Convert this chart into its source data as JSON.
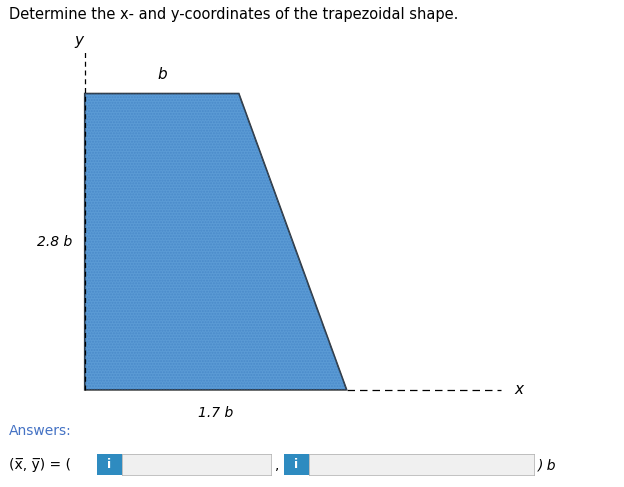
{
  "title": "Determine the x- and y-coordinates of the trapezoidal shape.",
  "title_fontsize": 10.5,
  "title_color": "#000000",
  "background_color": "#ffffff",
  "trap_fill_color": "#5b9bd5",
  "trap_edge_color": "#2d2d2d",
  "trap_edge_width": 1.2,
  "label_b_text": "b",
  "label_28b_text": "2.8 b",
  "label_17b_text": "1.7 b",
  "label_y_text": "y",
  "label_x_text": "x",
  "answers_text": "Answers:",
  "eq_text": "(x̅, y̅) = (",
  "box1_text": "i",
  "box2_text": "i",
  "suffix_text": ") b",
  "answers_color": "#4472c4",
  "box_color": "#2e8bc0",
  "box_border_color": "#cccccc",
  "label_fontsize": 10,
  "tick_color": "#555555"
}
